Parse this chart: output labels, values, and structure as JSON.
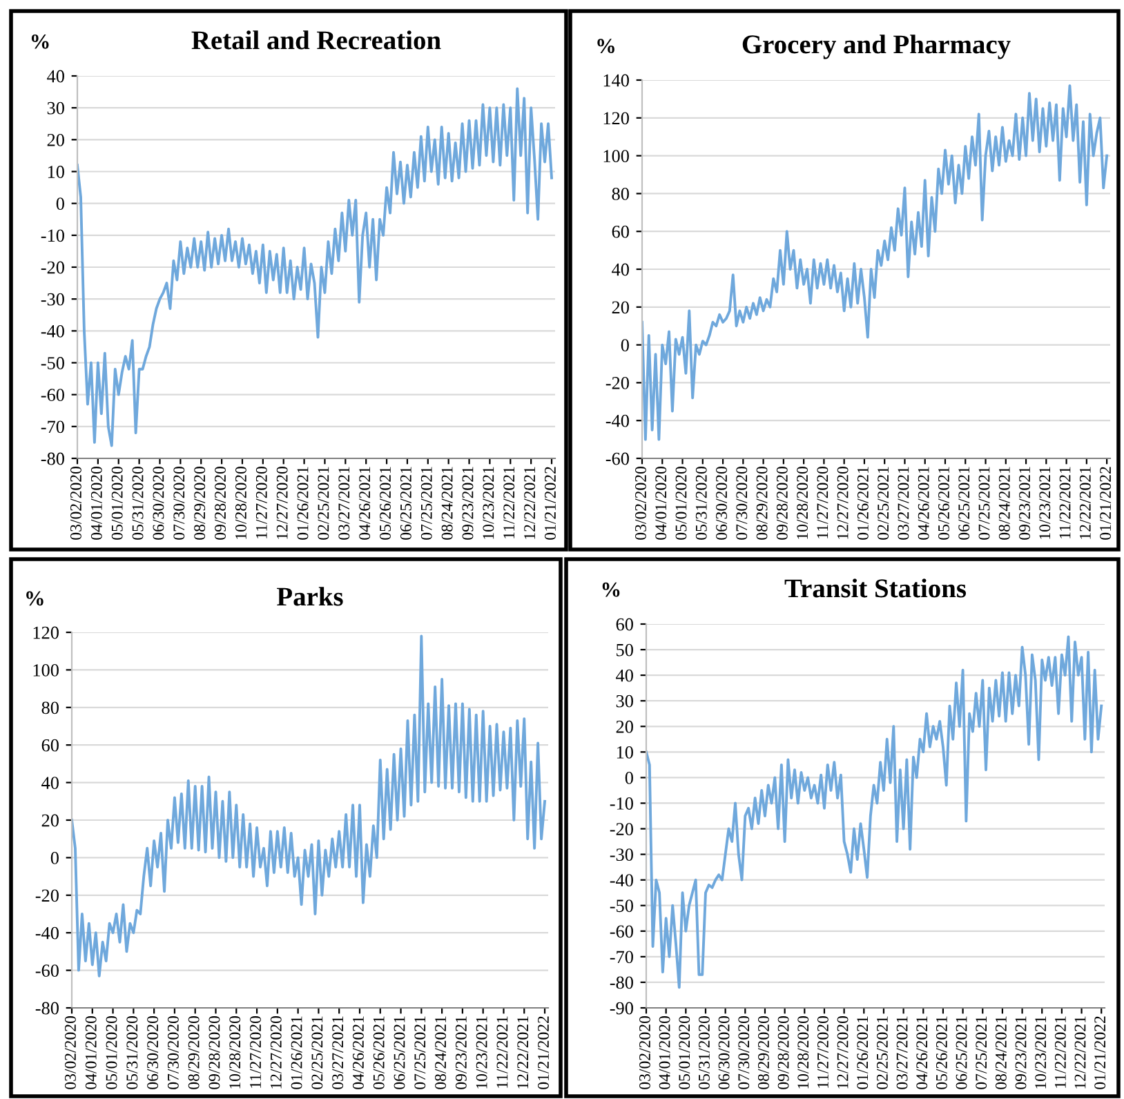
{
  "chart_data": [
    {
      "type": "line",
      "title": "Retail and Recreation",
      "ylabel": "%",
      "color": "#6fa8dc",
      "grid": "y",
      "x": [
        "2020-03-02",
        "2020-03-07",
        "2020-03-12",
        "2020-03-17",
        "2020-03-22",
        "2020-03-27",
        "2020-04-01",
        "2020-04-06",
        "2020-04-11",
        "2020-04-16",
        "2020-04-21",
        "2020-04-26",
        "2020-05-01",
        "2020-05-06",
        "2020-05-11",
        "2020-05-16",
        "2020-05-21",
        "2020-05-26",
        "2020-05-31",
        "2020-06-05",
        "2020-06-10",
        "2020-06-15",
        "2020-06-20",
        "2020-06-25",
        "2020-06-30",
        "2020-07-05",
        "2020-07-10",
        "2020-07-15",
        "2020-07-20",
        "2020-07-25",
        "2020-07-30",
        "2020-08-04",
        "2020-08-09",
        "2020-08-14",
        "2020-08-19",
        "2020-08-24",
        "2020-08-29",
        "2020-09-03",
        "2020-09-08",
        "2020-09-13",
        "2020-09-18",
        "2020-09-23",
        "2020-09-28",
        "2020-10-03",
        "2020-10-08",
        "2020-10-13",
        "2020-10-18",
        "2020-10-23",
        "2020-10-28",
        "2020-11-02",
        "2020-11-07",
        "2020-11-12",
        "2020-11-17",
        "2020-11-22",
        "2020-11-27",
        "2020-12-02",
        "2020-12-07",
        "2020-12-12",
        "2020-12-17",
        "2020-12-22",
        "2020-12-27",
        "2021-01-01",
        "2021-01-06",
        "2021-01-11",
        "2021-01-16",
        "2021-01-21",
        "2021-01-26",
        "2021-01-31",
        "2021-02-05",
        "2021-02-10",
        "2021-02-15",
        "2021-02-20",
        "2021-02-25",
        "2021-03-02",
        "2021-03-07",
        "2021-03-12",
        "2021-03-17",
        "2021-03-22",
        "2021-03-27",
        "2021-04-01",
        "2021-04-06",
        "2021-04-11",
        "2021-04-16",
        "2021-04-21",
        "2021-04-26",
        "2021-05-01",
        "2021-05-06",
        "2021-05-11",
        "2021-05-16",
        "2021-05-21",
        "2021-05-26",
        "2021-05-31",
        "2021-06-05",
        "2021-06-10",
        "2021-06-15",
        "2021-06-20",
        "2021-06-25",
        "2021-06-30",
        "2021-07-05",
        "2021-07-10",
        "2021-07-15",
        "2021-07-20",
        "2021-07-25",
        "2021-07-30",
        "2021-08-04",
        "2021-08-09",
        "2021-08-14",
        "2021-08-19",
        "2021-08-24",
        "2021-08-29",
        "2021-09-03",
        "2021-09-08",
        "2021-09-13",
        "2021-09-18",
        "2021-09-23",
        "2021-09-28",
        "2021-10-03",
        "2021-10-08",
        "2021-10-13",
        "2021-10-18",
        "2021-10-23",
        "2021-10-28",
        "2021-11-02",
        "2021-11-07",
        "2021-11-12",
        "2021-11-17",
        "2021-11-22",
        "2021-11-27",
        "2021-12-02",
        "2021-12-07",
        "2021-12-12",
        "2021-12-17",
        "2021-12-22",
        "2021-12-27",
        "2022-01-01",
        "2022-01-06",
        "2022-01-11",
        "2022-01-16",
        "2022-01-21"
      ],
      "values": [
        12,
        2,
        -40,
        -63,
        -50,
        -75,
        -50,
        -66,
        -47,
        -70,
        -76,
        -52,
        -60,
        -53,
        -48,
        -52,
        -43,
        -72,
        -52,
        -52,
        -48,
        -45,
        -38,
        -33,
        -30,
        -28,
        -25,
        -33,
        -18,
        -24,
        -12,
        -22,
        -14,
        -20,
        -11,
        -20,
        -12,
        -21,
        -9,
        -20,
        -11,
        -19,
        -10,
        -18,
        -8,
        -18,
        -12,
        -20,
        -11,
        -19,
        -13,
        -22,
        -15,
        -25,
        -13,
        -28,
        -15,
        -24,
        -16,
        -28,
        -14,
        -28,
        -18,
        -30,
        -20,
        -27,
        -14,
        -30,
        -19,
        -25,
        -42,
        -20,
        -28,
        -12,
        -22,
        -8,
        -18,
        -3,
        -15,
        1,
        -10,
        1,
        -31,
        -10,
        -3,
        -20,
        -5,
        -24,
        -5,
        -10,
        5,
        -3,
        16,
        3,
        13,
        0,
        12,
        2,
        16,
        5,
        21,
        7,
        24,
        10,
        20,
        6,
        24,
        8,
        22,
        7,
        19,
        8,
        25,
        10,
        26,
        11,
        26,
        12,
        31,
        15,
        30,
        13,
        30,
        12,
        31,
        15,
        30,
        1,
        36,
        15,
        33,
        -3,
        30,
        14,
        -5,
        25,
        13,
        25,
        8
      ],
      "xlim": [
        "2020-03-02",
        "2022-01-26"
      ],
      "xticks": [
        {
          "value": "2020-03-02",
          "label": "03/02/2020"
        },
        {
          "value": "2020-04-01",
          "label": "04/01/2020"
        },
        {
          "value": "2020-05-01",
          "label": "05/01/2020"
        },
        {
          "value": "2020-05-31",
          "label": "05/31/2020"
        },
        {
          "value": "2020-06-30",
          "label": "06/30/2020"
        },
        {
          "value": "2020-07-30",
          "label": "07/30/2020"
        },
        {
          "value": "2020-08-29",
          "label": "08/29/2020"
        },
        {
          "value": "2020-09-28",
          "label": "09/28/2020"
        },
        {
          "value": "2020-10-28",
          "label": "10/28/2020"
        },
        {
          "value": "2020-11-27",
          "label": "11/27/2020"
        },
        {
          "value": "2020-12-27",
          "label": "12/27/2020"
        },
        {
          "value": "2021-01-26",
          "label": "01/26/2021"
        },
        {
          "value": "2021-02-25",
          "label": "02/25/2021"
        },
        {
          "value": "2021-03-27",
          "label": "03/27/2021"
        },
        {
          "value": "2021-04-26",
          "label": "04/26/2021"
        },
        {
          "value": "2021-05-26",
          "label": "05/26/2021"
        },
        {
          "value": "2021-06-25",
          "label": "06/25/2021"
        },
        {
          "value": "2021-07-25",
          "label": "07/25/2021"
        },
        {
          "value": "2021-08-24",
          "label": "08/24/2021"
        },
        {
          "value": "2021-09-23",
          "label": "09/23/2021"
        },
        {
          "value": "2021-10-23",
          "label": "10/23/2021"
        },
        {
          "value": "2021-11-22",
          "label": "11/22/2021"
        },
        {
          "value": "2021-12-22",
          "label": "12/22/2021"
        },
        {
          "value": "2022-01-21",
          "label": "01/21/2022"
        }
      ],
      "ylim": [
        -80,
        40
      ],
      "yticks": [
        -80,
        -70,
        -60,
        -50,
        -40,
        -30,
        -20,
        -10,
        0,
        10,
        20,
        30,
        40
      ]
    },
    {
      "type": "line",
      "title": "Grocery and Pharmacy",
      "ylabel": "%",
      "color": "#6fa8dc",
      "grid": "y",
      "x": [
        "2020-03-02",
        "2020-03-07",
        "2020-03-12",
        "2020-03-17",
        "2020-03-22",
        "2020-03-27",
        "2020-04-01",
        "2020-04-06",
        "2020-04-11",
        "2020-04-16",
        "2020-04-21",
        "2020-04-26",
        "2020-05-01",
        "2020-05-06",
        "2020-05-11",
        "2020-05-16",
        "2020-05-21",
        "2020-05-26",
        "2020-05-31",
        "2020-06-05",
        "2020-06-10",
        "2020-06-15",
        "2020-06-20",
        "2020-06-25",
        "2020-06-30",
        "2020-07-05",
        "2020-07-10",
        "2020-07-15",
        "2020-07-20",
        "2020-07-25",
        "2020-07-30",
        "2020-08-04",
        "2020-08-09",
        "2020-08-14",
        "2020-08-19",
        "2020-08-24",
        "2020-08-29",
        "2020-09-03",
        "2020-09-08",
        "2020-09-13",
        "2020-09-18",
        "2020-09-23",
        "2020-09-28",
        "2020-10-03",
        "2020-10-08",
        "2020-10-13",
        "2020-10-18",
        "2020-10-23",
        "2020-10-28",
        "2020-11-02",
        "2020-11-07",
        "2020-11-12",
        "2020-11-17",
        "2020-11-22",
        "2020-11-27",
        "2020-12-02",
        "2020-12-07",
        "2020-12-12",
        "2020-12-17",
        "2020-12-22",
        "2020-12-27",
        "2021-01-01",
        "2021-01-06",
        "2021-01-11",
        "2021-01-16",
        "2021-01-21",
        "2021-01-26",
        "2021-01-31",
        "2021-02-05",
        "2021-02-10",
        "2021-02-15",
        "2021-02-20",
        "2021-02-25",
        "2021-03-02",
        "2021-03-07",
        "2021-03-12",
        "2021-03-17",
        "2021-03-22",
        "2021-03-27",
        "2021-04-01",
        "2021-04-06",
        "2021-04-11",
        "2021-04-16",
        "2021-04-21",
        "2021-04-26",
        "2021-05-01",
        "2021-05-06",
        "2021-05-11",
        "2021-05-16",
        "2021-05-21",
        "2021-05-26",
        "2021-05-31",
        "2021-06-05",
        "2021-06-10",
        "2021-06-15",
        "2021-06-20",
        "2021-06-25",
        "2021-06-30",
        "2021-07-05",
        "2021-07-10",
        "2021-07-15",
        "2021-07-20",
        "2021-07-25",
        "2021-07-30",
        "2021-08-04",
        "2021-08-09",
        "2021-08-14",
        "2021-08-19",
        "2021-08-24",
        "2021-08-29",
        "2021-09-03",
        "2021-09-08",
        "2021-09-13",
        "2021-09-18",
        "2021-09-23",
        "2021-09-28",
        "2021-10-03",
        "2021-10-08",
        "2021-10-13",
        "2021-10-18",
        "2021-10-23",
        "2021-10-28",
        "2021-11-02",
        "2021-11-07",
        "2021-11-12",
        "2021-11-17",
        "2021-11-22",
        "2021-11-27",
        "2021-12-02",
        "2021-12-07",
        "2021-12-12",
        "2021-12-17",
        "2021-12-22",
        "2021-12-27",
        "2022-01-01",
        "2022-01-06",
        "2022-01-11",
        "2022-01-16",
        "2022-01-21"
      ],
      "values": [
        12,
        -50,
        5,
        -45,
        -5,
        -50,
        0,
        -10,
        7,
        -35,
        3,
        -5,
        4,
        -15,
        18,
        -28,
        0,
        -5,
        2,
        0,
        5,
        12,
        10,
        16,
        12,
        14,
        18,
        37,
        10,
        18,
        12,
        20,
        14,
        22,
        16,
        25,
        18,
        24,
        20,
        35,
        28,
        50,
        32,
        60,
        40,
        50,
        30,
        45,
        32,
        40,
        22,
        45,
        30,
        43,
        32,
        45,
        30,
        42,
        28,
        38,
        18,
        35,
        20,
        43,
        22,
        40,
        25,
        4,
        40,
        25,
        50,
        42,
        55,
        45,
        62,
        50,
        72,
        58,
        83,
        36,
        65,
        48,
        70,
        52,
        87,
        47,
        78,
        60,
        93,
        80,
        103,
        85,
        100,
        75,
        95,
        80,
        105,
        88,
        110,
        95,
        122,
        66,
        100,
        113,
        92,
        110,
        95,
        115,
        97,
        108,
        100,
        122,
        98,
        120,
        100,
        133,
        108,
        130,
        102,
        125,
        105,
        128,
        108,
        127,
        87,
        125,
        110,
        137,
        108,
        127,
        86,
        118,
        74,
        122,
        100,
        112,
        120,
        83,
        100
      ],
      "xlim": [
        "2020-03-02",
        "2022-01-26"
      ],
      "xticks": [
        {
          "value": "2020-03-02",
          "label": "03/02/2020"
        },
        {
          "value": "2020-04-01",
          "label": "04/01/2020"
        },
        {
          "value": "2020-05-01",
          "label": "05/01/2020"
        },
        {
          "value": "2020-05-31",
          "label": "05/31/2020"
        },
        {
          "value": "2020-06-30",
          "label": "06/30/2020"
        },
        {
          "value": "2020-07-30",
          "label": "07/30/2020"
        },
        {
          "value": "2020-08-29",
          "label": "08/29/2020"
        },
        {
          "value": "2020-09-28",
          "label": "09/28/2020"
        },
        {
          "value": "2020-10-28",
          "label": "10/28/2020"
        },
        {
          "value": "2020-11-27",
          "label": "11/27/2020"
        },
        {
          "value": "2020-12-27",
          "label": "12/27/2020"
        },
        {
          "value": "2021-01-26",
          "label": "01/26/2021"
        },
        {
          "value": "2021-02-25",
          "label": "02/25/2021"
        },
        {
          "value": "2021-03-27",
          "label": "03/27/2021"
        },
        {
          "value": "2021-04-26",
          "label": "04/26/2021"
        },
        {
          "value": "2021-05-26",
          "label": "05/26/2021"
        },
        {
          "value": "2021-06-25",
          "label": "06/25/2021"
        },
        {
          "value": "2021-07-25",
          "label": "07/25/2021"
        },
        {
          "value": "2021-08-24",
          "label": "08/24/2021"
        },
        {
          "value": "2021-09-23",
          "label": "09/23/2021"
        },
        {
          "value": "2021-10-23",
          "label": "10/23/2021"
        },
        {
          "value": "2021-11-22",
          "label": "11/22/2021"
        },
        {
          "value": "2021-12-22",
          "label": "12/22/2021"
        },
        {
          "value": "2022-01-21",
          "label": "01/21/2022"
        }
      ],
      "ylim": [
        -60,
        140
      ],
      "yticks": [
        -60,
        -40,
        -20,
        0,
        20,
        40,
        60,
        80,
        100,
        120,
        140
      ]
    },
    {
      "type": "line",
      "title": "Parks",
      "ylabel": "%",
      "color": "#6fa8dc",
      "grid": "y",
      "x": [
        "2020-03-02",
        "2020-03-07",
        "2020-03-12",
        "2020-03-17",
        "2020-03-22",
        "2020-03-27",
        "2020-04-01",
        "2020-04-06",
        "2020-04-11",
        "2020-04-16",
        "2020-04-21",
        "2020-04-26",
        "2020-05-01",
        "2020-05-06",
        "2020-05-11",
        "2020-05-16",
        "2020-05-21",
        "2020-05-26",
        "2020-05-31",
        "2020-06-05",
        "2020-06-10",
        "2020-06-15",
        "2020-06-20",
        "2020-06-25",
        "2020-06-30",
        "2020-07-05",
        "2020-07-10",
        "2020-07-15",
        "2020-07-20",
        "2020-07-25",
        "2020-07-30",
        "2020-08-04",
        "2020-08-09",
        "2020-08-14",
        "2020-08-19",
        "2020-08-24",
        "2020-08-29",
        "2020-09-03",
        "2020-09-08",
        "2020-09-13",
        "2020-09-18",
        "2020-09-23",
        "2020-09-28",
        "2020-10-03",
        "2020-10-08",
        "2020-10-13",
        "2020-10-18",
        "2020-10-23",
        "2020-10-28",
        "2020-11-02",
        "2020-11-07",
        "2020-11-12",
        "2020-11-17",
        "2020-11-22",
        "2020-11-27",
        "2020-12-02",
        "2020-12-07",
        "2020-12-12",
        "2020-12-17",
        "2020-12-22",
        "2020-12-27",
        "2021-01-01",
        "2021-01-06",
        "2021-01-11",
        "2021-01-16",
        "2021-01-21",
        "2021-01-26",
        "2021-01-31",
        "2021-02-05",
        "2021-02-10",
        "2021-02-15",
        "2021-02-20",
        "2021-02-25",
        "2021-03-02",
        "2021-03-07",
        "2021-03-12",
        "2021-03-17",
        "2021-03-22",
        "2021-03-27",
        "2021-04-01",
        "2021-04-06",
        "2021-04-11",
        "2021-04-16",
        "2021-04-21",
        "2021-04-26",
        "2021-05-01",
        "2021-05-06",
        "2021-05-11",
        "2021-05-16",
        "2021-05-21",
        "2021-05-26",
        "2021-05-31",
        "2021-06-05",
        "2021-06-10",
        "2021-06-15",
        "2021-06-20",
        "2021-06-25",
        "2021-06-30",
        "2021-07-05",
        "2021-07-10",
        "2021-07-15",
        "2021-07-20",
        "2021-07-25",
        "2021-07-30",
        "2021-08-04",
        "2021-08-09",
        "2021-08-14",
        "2021-08-19",
        "2021-08-24",
        "2021-08-29",
        "2021-09-03",
        "2021-09-08",
        "2021-09-13",
        "2021-09-18",
        "2021-09-23",
        "2021-09-28",
        "2021-10-03",
        "2021-10-08",
        "2021-10-13",
        "2021-10-18",
        "2021-10-23",
        "2021-10-28",
        "2021-11-02",
        "2021-11-07",
        "2021-11-12",
        "2021-11-17",
        "2021-11-22",
        "2021-11-27",
        "2021-12-02",
        "2021-12-07",
        "2021-12-12",
        "2021-12-17",
        "2021-12-22",
        "2021-12-27",
        "2022-01-01",
        "2022-01-06",
        "2022-01-11",
        "2022-01-16",
        "2022-01-21"
      ],
      "values": [
        20,
        5,
        -60,
        -30,
        -55,
        -35,
        -57,
        -40,
        -63,
        -45,
        -55,
        -35,
        -40,
        -30,
        -45,
        -25,
        -50,
        -35,
        -40,
        -28,
        -30,
        -10,
        5,
        -15,
        9,
        -5,
        13,
        -18,
        20,
        5,
        32,
        8,
        34,
        5,
        41,
        5,
        38,
        4,
        38,
        3,
        43,
        5,
        35,
        0,
        30,
        -2,
        35,
        0,
        28,
        -5,
        23,
        -5,
        18,
        -10,
        16,
        -5,
        5,
        -15,
        14,
        -8,
        14,
        -5,
        16,
        -8,
        13,
        -10,
        0,
        -25,
        4,
        -10,
        7,
        -30,
        9,
        -20,
        4,
        -10,
        10,
        -5,
        14,
        -5,
        23,
        -5,
        28,
        -10,
        28,
        -24,
        7,
        -10,
        17,
        0,
        52,
        10,
        47,
        15,
        55,
        20,
        58,
        22,
        73,
        28,
        76,
        30,
        118,
        35,
        82,
        40,
        91,
        38,
        95,
        37,
        81,
        37,
        82,
        35,
        82,
        32,
        79,
        30,
        76,
        30,
        78,
        30,
        70,
        33,
        71,
        36,
        67,
        37,
        69,
        20,
        73,
        38,
        74,
        10,
        51,
        5,
        61,
        10,
        30
      ],
      "xlim": [
        "2020-03-02",
        "2022-01-26"
      ],
      "xticks": [
        {
          "value": "2020-03-02",
          "label": "03/02/2020"
        },
        {
          "value": "2020-04-01",
          "label": "04/01/2020"
        },
        {
          "value": "2020-05-01",
          "label": "05/01/2020"
        },
        {
          "value": "2020-05-31",
          "label": "05/31/2020"
        },
        {
          "value": "2020-06-30",
          "label": "06/30/2020"
        },
        {
          "value": "2020-07-30",
          "label": "07/30/2020"
        },
        {
          "value": "2020-08-29",
          "label": "08/29/2020"
        },
        {
          "value": "2020-09-28",
          "label": "09/28/2020"
        },
        {
          "value": "2020-10-28",
          "label": "10/28/2020"
        },
        {
          "value": "2020-11-27",
          "label": "11/27/2020"
        },
        {
          "value": "2020-12-27",
          "label": "12/27/2020"
        },
        {
          "value": "2021-01-26",
          "label": "01/26/2021"
        },
        {
          "value": "2021-02-25",
          "label": "02/25/2021"
        },
        {
          "value": "2021-03-27",
          "label": "03/27/2021"
        },
        {
          "value": "2021-04-26",
          "label": "04/26/2021"
        },
        {
          "value": "2021-05-26",
          "label": "05/26/2021"
        },
        {
          "value": "2021-06-25",
          "label": "06/25/2021"
        },
        {
          "value": "2021-07-25",
          "label": "07/25/2021"
        },
        {
          "value": "2021-08-24",
          "label": "08/24/2021"
        },
        {
          "value": "2021-09-23",
          "label": "09/23/2021"
        },
        {
          "value": "2021-10-23",
          "label": "10/23/2021"
        },
        {
          "value": "2021-11-22",
          "label": "11/22/2021"
        },
        {
          "value": "2021-12-22",
          "label": "12/22/2021"
        },
        {
          "value": "2022-01-21",
          "label": "01/21/2022"
        }
      ],
      "ylim": [
        -80,
        120
      ],
      "yticks": [
        -80,
        -60,
        -40,
        -20,
        0,
        20,
        40,
        60,
        80,
        100,
        120
      ]
    },
    {
      "type": "line",
      "title": "Transit Stations",
      "ylabel": "%",
      "color": "#6fa8dc",
      "grid": "y",
      "x": [
        "2020-03-02",
        "2020-03-07",
        "2020-03-12",
        "2020-03-17",
        "2020-03-22",
        "2020-03-27",
        "2020-04-01",
        "2020-04-06",
        "2020-04-11",
        "2020-04-16",
        "2020-04-21",
        "2020-04-26",
        "2020-05-01",
        "2020-05-06",
        "2020-05-11",
        "2020-05-16",
        "2020-05-21",
        "2020-05-26",
        "2020-05-31",
        "2020-06-05",
        "2020-06-10",
        "2020-06-15",
        "2020-06-20",
        "2020-06-25",
        "2020-06-30",
        "2020-07-05",
        "2020-07-10",
        "2020-07-15",
        "2020-07-20",
        "2020-07-25",
        "2020-07-30",
        "2020-08-04",
        "2020-08-09",
        "2020-08-14",
        "2020-08-19",
        "2020-08-24",
        "2020-08-29",
        "2020-09-03",
        "2020-09-08",
        "2020-09-13",
        "2020-09-18",
        "2020-09-23",
        "2020-09-28",
        "2020-10-03",
        "2020-10-08",
        "2020-10-13",
        "2020-10-18",
        "2020-10-23",
        "2020-10-28",
        "2020-11-02",
        "2020-11-07",
        "2020-11-12",
        "2020-11-17",
        "2020-11-22",
        "2020-11-27",
        "2020-12-02",
        "2020-12-07",
        "2020-12-12",
        "2020-12-17",
        "2020-12-22",
        "2020-12-27",
        "2021-01-01",
        "2021-01-06",
        "2021-01-11",
        "2021-01-16",
        "2021-01-21",
        "2021-01-26",
        "2021-01-31",
        "2021-02-05",
        "2021-02-10",
        "2021-02-15",
        "2021-02-20",
        "2021-02-25",
        "2021-03-02",
        "2021-03-07",
        "2021-03-12",
        "2021-03-17",
        "2021-03-22",
        "2021-03-27",
        "2021-04-01",
        "2021-04-06",
        "2021-04-11",
        "2021-04-16",
        "2021-04-21",
        "2021-04-26",
        "2021-05-01",
        "2021-05-06",
        "2021-05-11",
        "2021-05-16",
        "2021-05-21",
        "2021-05-26",
        "2021-05-31",
        "2021-06-05",
        "2021-06-10",
        "2021-06-15",
        "2021-06-20",
        "2021-06-25",
        "2021-06-30",
        "2021-07-05",
        "2021-07-10",
        "2021-07-15",
        "2021-07-20",
        "2021-07-25",
        "2021-07-30",
        "2021-08-04",
        "2021-08-09",
        "2021-08-14",
        "2021-08-19",
        "2021-08-24",
        "2021-08-29",
        "2021-09-03",
        "2021-09-08",
        "2021-09-13",
        "2021-09-18",
        "2021-09-23",
        "2021-09-28",
        "2021-10-03",
        "2021-10-08",
        "2021-10-13",
        "2021-10-18",
        "2021-10-23",
        "2021-10-28",
        "2021-11-02",
        "2021-11-07",
        "2021-11-12",
        "2021-11-17",
        "2021-11-22",
        "2021-11-27",
        "2021-12-02",
        "2021-12-07",
        "2021-12-12",
        "2021-12-17",
        "2021-12-22",
        "2021-12-27",
        "2022-01-01",
        "2022-01-06",
        "2022-01-11",
        "2022-01-16",
        "2022-01-21"
      ],
      "values": [
        10,
        5,
        -66,
        -40,
        -45,
        -76,
        -55,
        -70,
        -50,
        -65,
        -82,
        -45,
        -60,
        -50,
        -45,
        -40,
        -77,
        -77,
        -45,
        -42,
        -43,
        -40,
        -38,
        -40,
        -30,
        -20,
        -25,
        -10,
        -30,
        -40,
        -15,
        -12,
        -20,
        -8,
        -18,
        -5,
        -15,
        -3,
        -10,
        0,
        -20,
        5,
        -25,
        7,
        -8,
        3,
        -10,
        2,
        -5,
        0,
        -8,
        -3,
        -10,
        1,
        -12,
        5,
        -5,
        6,
        -8,
        1,
        -25,
        -30,
        -37,
        -20,
        -32,
        -18,
        -28,
        -39,
        -15,
        -3,
        -10,
        6,
        -5,
        15,
        -2,
        20,
        -25,
        3,
        -20,
        7,
        -28,
        8,
        0,
        15,
        10,
        25,
        12,
        20,
        15,
        22,
        12,
        -3,
        28,
        15,
        37,
        20,
        42,
        -17,
        25,
        18,
        33,
        20,
        38,
        3,
        35,
        22,
        38,
        24,
        41,
        22,
        41,
        25,
        40,
        28,
        51,
        40,
        13,
        48,
        38,
        7,
        46,
        38,
        47,
        36,
        47,
        25,
        48,
        40,
        55,
        22,
        53,
        40,
        47,
        15,
        49,
        10,
        42,
        15,
        28
      ],
      "xlim": [
        "2020-03-02",
        "2022-01-26"
      ],
      "xticks": [
        {
          "value": "2020-03-02",
          "label": "03/02/2020"
        },
        {
          "value": "2020-04-01",
          "label": "04/01/2020"
        },
        {
          "value": "2020-05-01",
          "label": "05/01/2020"
        },
        {
          "value": "2020-05-31",
          "label": "05/31/2020"
        },
        {
          "value": "2020-06-30",
          "label": "06/30/2020"
        },
        {
          "value": "2020-07-30",
          "label": "07/30/2020"
        },
        {
          "value": "2020-08-29",
          "label": "08/29/2020"
        },
        {
          "value": "2020-09-28",
          "label": "09/28/2020"
        },
        {
          "value": "2020-10-28",
          "label": "10/28/2020"
        },
        {
          "value": "2020-11-27",
          "label": "11/27/2020"
        },
        {
          "value": "2020-12-27",
          "label": "12/27/2020"
        },
        {
          "value": "2021-01-26",
          "label": "01/26/2021"
        },
        {
          "value": "2021-02-25",
          "label": "02/25/2021"
        },
        {
          "value": "2021-03-27",
          "label": "03/27/2021"
        },
        {
          "value": "2021-04-26",
          "label": "04/26/2021"
        },
        {
          "value": "2021-05-26",
          "label": "05/26/2021"
        },
        {
          "value": "2021-06-25",
          "label": "06/25/2021"
        },
        {
          "value": "2021-07-25",
          "label": "07/25/2021"
        },
        {
          "value": "2021-08-24",
          "label": "08/24/2021"
        },
        {
          "value": "2021-09-23",
          "label": "09/23/2021"
        },
        {
          "value": "2021-10-23",
          "label": "10/23/2021"
        },
        {
          "value": "2021-11-22",
          "label": "11/22/2021"
        },
        {
          "value": "2021-12-22",
          "label": "12/22/2021"
        },
        {
          "value": "2022-01-21",
          "label": "01/21/2022"
        }
      ],
      "ylim": [
        -90,
        60
      ],
      "yticks": [
        -90,
        -80,
        -70,
        -60,
        -50,
        -40,
        -30,
        -20,
        -10,
        0,
        10,
        20,
        30,
        40,
        50,
        60
      ]
    }
  ]
}
